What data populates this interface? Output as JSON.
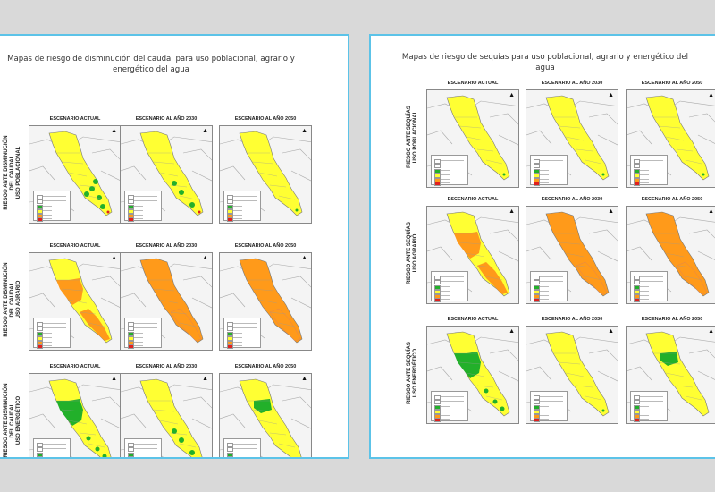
{
  "panels": [
    {
      "id": "caudal",
      "title": "Mapas de riesgo de disminución del caudal para uso poblacional, agrario y energético del agua",
      "scenarios": [
        "ESCENARIO ACTUAL",
        "ESCENARIO AL AÑO 2030",
        "ESCENARIO AL AÑO 2050"
      ],
      "rows": [
        {
          "label": [
            "RIESGO ANTE DISMINUCIÓN",
            "DEL CAUDAL",
            "USO POBLACIONAL"
          ],
          "fills": [
            "yellow-green",
            "yellow-green-light",
            "yellow"
          ]
        },
        {
          "label": [
            "RIESGO ANTE DISMINUCIÓN",
            "DEL CAUDAL",
            "USO AGRARIO"
          ],
          "fills": [
            "orange-mid",
            "orange-full",
            "orange-full"
          ]
        },
        {
          "label": [
            "RIESGO ANTE DISMINUCIÓN",
            "DEL CAUDAL",
            "USO ENERGÉTICO"
          ],
          "fills": [
            "green-big",
            "yellow-green-light",
            "green-top"
          ]
        }
      ]
    },
    {
      "id": "sequias",
      "title": "Mapas de riesgo de sequías para uso poblacional, agrario y energético del agua",
      "scenarios": [
        "ESCENARIO ACTUAL",
        "ESCENARIO AL AÑO 2030",
        "ESCENARIO AL AÑO 2050"
      ],
      "rows": [
        {
          "label": [
            "RIESGO ANTE SEQUÍAS",
            "USO POBLACIONAL"
          ],
          "fills": [
            "yellow",
            "yellow",
            "yellow"
          ]
        },
        {
          "label": [
            "RIESGO ANTE SEQUÍAS",
            "USO AGRARIO"
          ],
          "fills": [
            "orange-mid",
            "orange-full",
            "orange-full"
          ]
        },
        {
          "label": [
            "RIESGO ANTE SEQUÍAS",
            "USO ENERGÉTICO"
          ],
          "fills": [
            "green-big",
            "yellow",
            "green-top"
          ]
        }
      ]
    }
  ],
  "colors": {
    "background": "#d9d9d9",
    "panel_border": "#5cc3e8",
    "yellow": "#ffff33",
    "orange": "#ff9a1a",
    "green": "#22b02a",
    "red": "#e02020"
  }
}
